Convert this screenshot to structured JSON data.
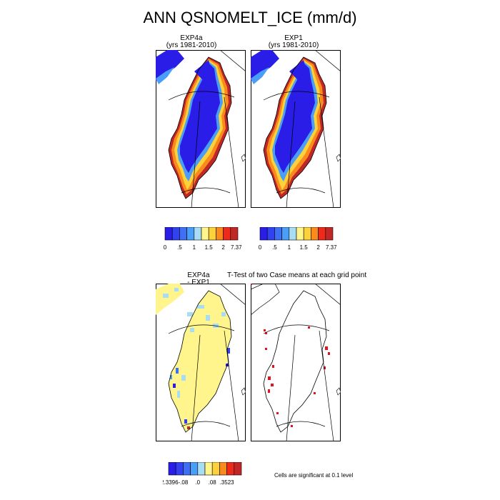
{
  "figure": {
    "title": "ANN QSNOMELT_ICE (mm/d)"
  },
  "panels": {
    "exp4a": {
      "title_line1": "EXP4a",
      "title_line2": "(yrs 1981-2010)"
    },
    "exp1": {
      "title_line1": "EXP1",
      "title_line2": "(yrs 1981-2010)"
    },
    "diff": {
      "title_line1": "EXP4a",
      "title_line2": "- EXP1"
    },
    "ttest": {
      "title": "T-Test of two Case means at each grid point",
      "note": "Cells are significant at 0.1 level"
    }
  },
  "colorbars": {
    "abs_colors": [
      "#2b1de8",
      "#3342f0",
      "#3f6ff5",
      "#4a9ef8",
      "#a8dcf2",
      "#fff58c",
      "#fdd13a",
      "#fa8a1c",
      "#ef2a1a",
      "#c02828"
    ],
    "abs_exp4a_labels": [
      "0",
      ".5",
      "1",
      "1.5",
      "2",
      "7.371"
    ],
    "abs_exp1_labels": [
      "0",
      ".5",
      "1",
      "1.5",
      "2",
      "7.373"
    ],
    "diff_colors": [
      "#2b1de8",
      "#3342f0",
      "#3f6ff5",
      "#4a9ef8",
      "#a8dcf2",
      "#fff58c",
      "#fdd13a",
      "#fa8a1c",
      "#ef2a1a",
      "#c02828"
    ],
    "diff_labels": [
      "-2.3396",
      "-.08",
      ".0",
      ".08",
      ".3523"
    ]
  },
  "chart_data": [
    {
      "type": "heatmap",
      "panel": "EXP4a (yrs 1981-2010)",
      "variable": "ANN QSNOMELT_ICE",
      "units": "mm/d",
      "color_levels": [
        0,
        0.5,
        1,
        1.5,
        2,
        7.371
      ],
      "summary": "Interior ice sheet near 0 (deep blue); high melt (orange-red, up to 7.371) along southwest and southeast margins"
    },
    {
      "type": "heatmap",
      "panel": "EXP1 (yrs 1981-2010)",
      "variable": "ANN QSNOMELT_ICE",
      "units": "mm/d",
      "color_levels": [
        0,
        0.5,
        1,
        1.5,
        2,
        7.373
      ],
      "summary": "Pattern nearly identical to EXP4a; maximum 7.373"
    },
    {
      "type": "heatmap",
      "panel": "EXP4a - EXP1",
      "variable": "ANN QSNOMELT_ICE difference",
      "units": "mm/d",
      "color_levels": [
        -2.3396,
        -0.08,
        0.0,
        0.08,
        0.3523
      ],
      "summary": "Differences mostly near zero (pale yellow) with small negative (blue) patches along western and eastern margins"
    },
    {
      "type": "heatmap",
      "panel": "T-Test of two Case means at each grid point",
      "summary": "Scattered red cells significant at 0.1 level, mainly along west and east coasts"
    }
  ]
}
